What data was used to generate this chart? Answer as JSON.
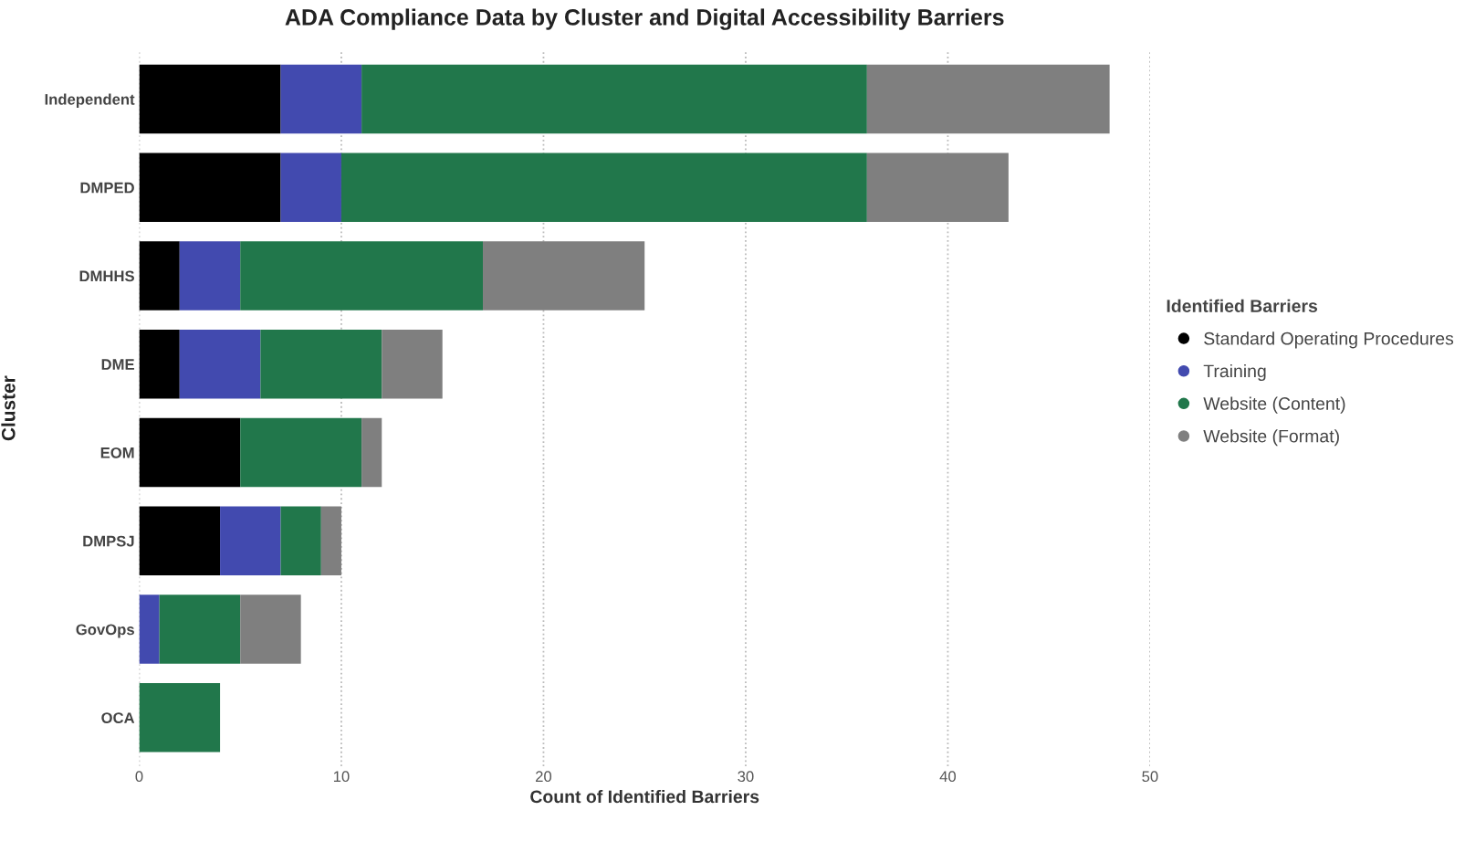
{
  "chart_data": {
    "type": "bar",
    "orientation": "horizontal",
    "stacked": true,
    "title": "ADA Compliance Data by Cluster and Digital Accessibility Barriers",
    "xlabel": "Count of Identified Barriers",
    "ylabel": "Cluster",
    "legend_title": "Identified Barriers",
    "categories": [
      "Independent",
      "DMPED",
      "DMHHS",
      "DME",
      "EOM",
      "DMPSJ",
      "GovOps",
      "OCA"
    ],
    "series": [
      {
        "name": "Standard Operating Procedures",
        "color": "#000000",
        "values": [
          7,
          7,
          2,
          2,
          5,
          4,
          0,
          0
        ]
      },
      {
        "name": "Training",
        "color": "#424aaf",
        "values": [
          4,
          3,
          3,
          4,
          0,
          3,
          1,
          0
        ]
      },
      {
        "name": "Website (Content)",
        "color": "#21774b",
        "values": [
          25,
          26,
          12,
          6,
          6,
          2,
          4,
          4
        ]
      },
      {
        "name": "Website (Format)",
        "color": "#7f7f7f",
        "values": [
          12,
          7,
          8,
          3,
          1,
          1,
          3,
          0
        ]
      }
    ],
    "xlim": [
      0,
      50
    ],
    "xticks": [
      0,
      10,
      20,
      30,
      40,
      50
    ],
    "grid": "x",
    "legend": "right"
  }
}
